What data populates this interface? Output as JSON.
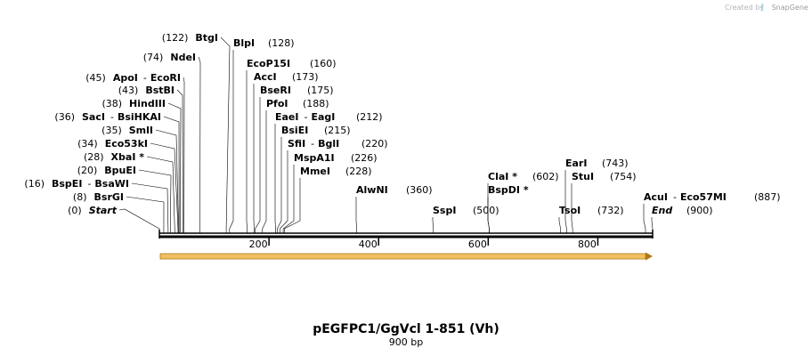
{
  "title": "pEGFPC1/GgVcl 1-851 (Vh)",
  "length_label": "900 bp",
  "credit": {
    "prefix": "Created by",
    "brand": "SnapGene"
  },
  "sequence_length": 900,
  "ticks": [
    "200",
    "400",
    "600",
    "800"
  ],
  "colors": {
    "feature": "#f0c060",
    "feature_edge": "#b07818",
    "backbone": "#000000",
    "credit": "#b5b5b5"
  },
  "left_sites": [
    {
      "pos_text": "(122)",
      "name": "BtgI",
      "site": 122
    },
    {
      "pos_text": "(74)",
      "name": "NdeI",
      "site": 74
    },
    {
      "pos_text": "(45)",
      "name": "ApoI",
      "alt": "EcoRI",
      "site": 45
    },
    {
      "pos_text": "(43)",
      "name": "BstBI",
      "site": 43
    },
    {
      "pos_text": "(38)",
      "name": "HindIII",
      "site": 38
    },
    {
      "pos_text": "(36)",
      "name": "SacI",
      "alt": "BsiHKAI",
      "site": 36
    },
    {
      "pos_text": "(35)",
      "name": "SmlI",
      "site": 35
    },
    {
      "pos_text": "(34)",
      "name": "Eco53kI",
      "site": 34
    },
    {
      "pos_text": "(28)",
      "name": "XbaI *",
      "site": 28
    },
    {
      "pos_text": "(20)",
      "name": "BpuEI",
      "site": 20
    },
    {
      "pos_text": "(16)",
      "name": "BspEI",
      "alt": "BsaWI",
      "site": 16
    },
    {
      "pos_text": "(8)",
      "name": "BsrGI",
      "site": 8
    },
    {
      "pos_text": "(0)",
      "name": "Start",
      "site": 0,
      "italic": true
    }
  ],
  "right_sites": [
    {
      "name": "BlpI",
      "pos_text": "(128)",
      "site": 128
    },
    {
      "name": "EcoP15I",
      "pos_text": "(160)",
      "site": 160
    },
    {
      "name": "AccI",
      "pos_text": "(173)",
      "site": 173
    },
    {
      "name": "BseRI",
      "pos_text": "(175)",
      "site": 175
    },
    {
      "name": "PfoI",
      "pos_text": "(188)",
      "site": 188
    },
    {
      "name": "EaeI",
      "alt": "EagI",
      "pos_text": "(212)",
      "site": 212
    },
    {
      "name": "BsiEI",
      "pos_text": "(215)",
      "site": 215
    },
    {
      "name": "SfiI",
      "alt": "BglI",
      "pos_text": "(220)",
      "site": 220
    },
    {
      "name": "MspA1I",
      "pos_text": "(226)",
      "site": 226
    },
    {
      "name": "MmeI",
      "pos_text": "(228)",
      "site": 228
    },
    {
      "name": "AlwNI",
      "pos_text": "(360)",
      "site": 360
    },
    {
      "name": "SspI",
      "pos_text": "(500)",
      "site": 500
    },
    {
      "name": "ClaI *",
      "pos_text": "(602)",
      "site": 602
    },
    {
      "name": "BspDI *",
      "site": 602
    },
    {
      "name": "EarI",
      "pos_text": "(743)",
      "site": 743
    },
    {
      "name": "StuI",
      "pos_text": "(754)",
      "site": 754
    },
    {
      "name": "TsoI",
      "pos_text": "(732)",
      "site": 732
    },
    {
      "name": "AcuI",
      "alt": "Eco57MI",
      "pos_text": "(887)",
      "site": 887
    },
    {
      "name": "End",
      "pos_text": "(900)",
      "site": 900,
      "italic": true
    }
  ]
}
